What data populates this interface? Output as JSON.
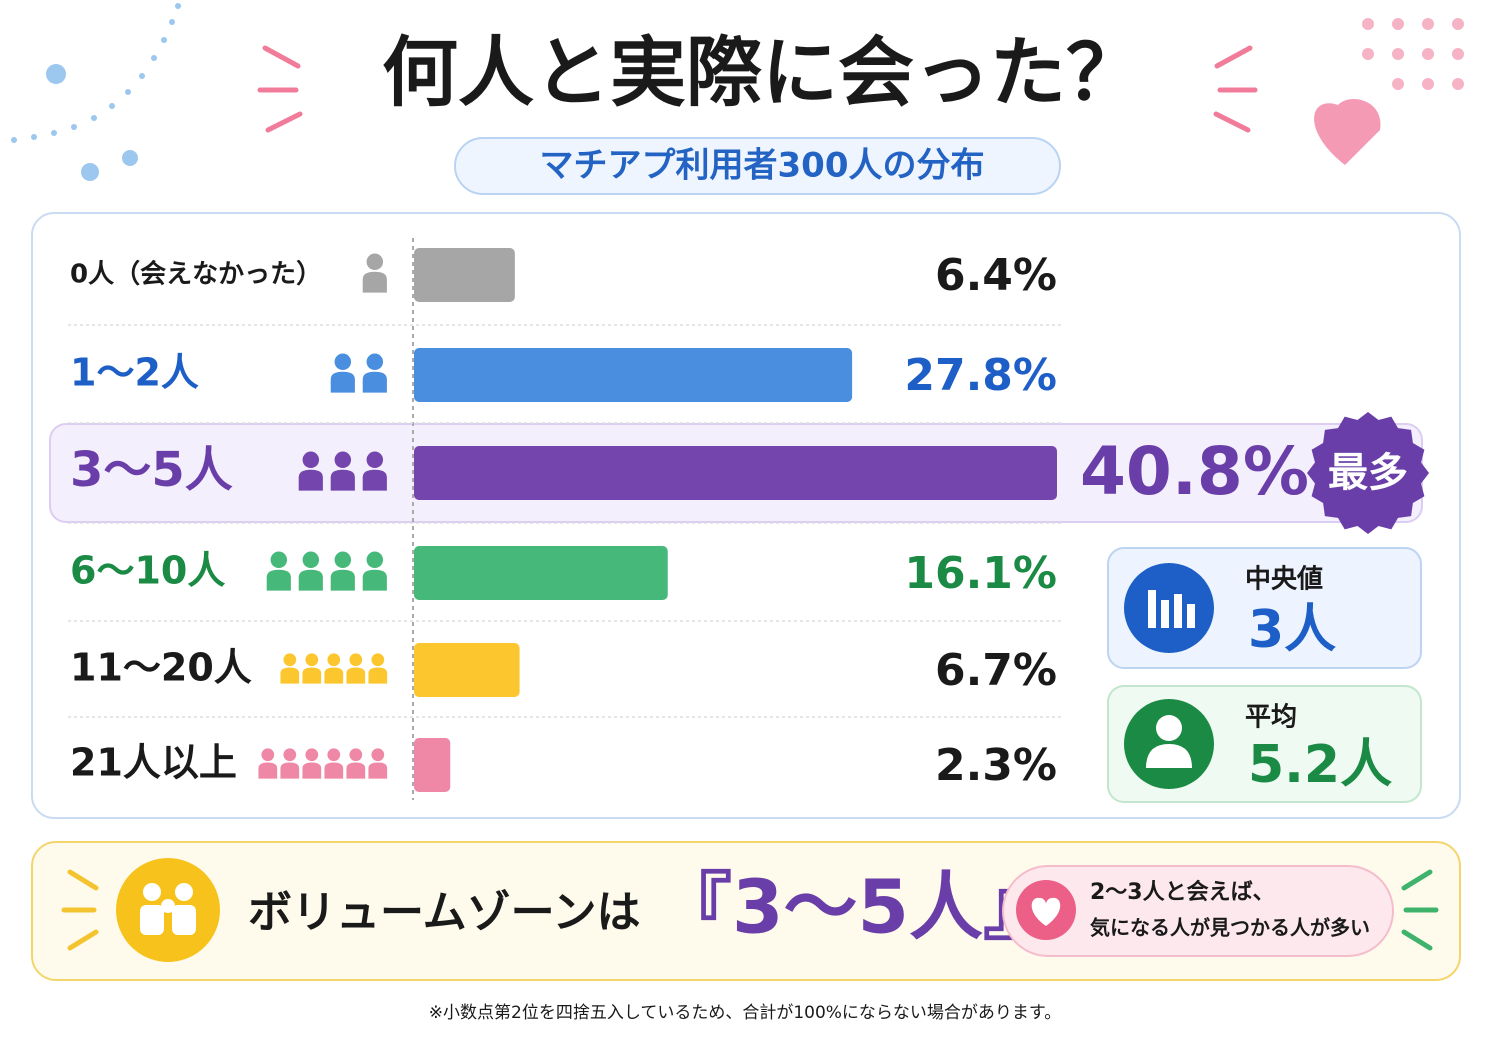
{
  "chart_data": {
    "type": "bar",
    "orientation": "horizontal",
    "title": "何人と実際に会った？",
    "subtitle": "マチアプ利用者300人の分布",
    "categories": [
      "0人（会えなかった）",
      "1〜2人",
      "3〜5人",
      "6〜10人",
      "11〜20人",
      "21人以上"
    ],
    "values": [
      6.4,
      27.8,
      40.8,
      16.1,
      6.7,
      2.3
    ],
    "value_labels": [
      "6.4%",
      "27.8%",
      "40.8%",
      "16.1%",
      "6.7%",
      "2.3%"
    ],
    "colors": [
      "#a6a6a6",
      "#4a8ee0",
      "#7446ad",
      "#46b97a",
      "#fbc62e",
      "#ef87a6"
    ],
    "annotation": "最多"
  },
  "stats": [
    {
      "label": "中央値",
      "value": "3人"
    },
    {
      "label": "平均",
      "value": "5.2人"
    }
  ],
  "banner": {
    "text": "ボリュームゾーンは",
    "highlight": "『3〜5人』",
    "note": [
      "2〜3人と会えば、",
      "気になる人が見つかる人が多い"
    ]
  },
  "footnote": "※小数点第2位を四捨五入しているため、合計が100%にならない場合があります。"
}
